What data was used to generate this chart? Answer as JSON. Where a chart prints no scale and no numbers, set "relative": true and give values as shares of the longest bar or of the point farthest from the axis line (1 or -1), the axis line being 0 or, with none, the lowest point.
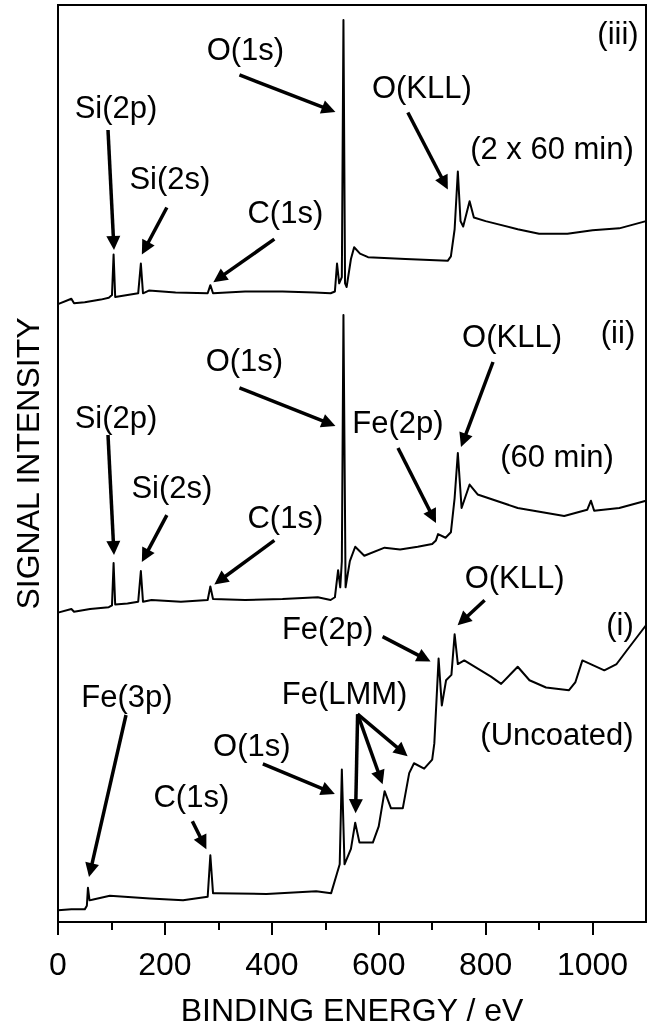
{
  "chart_data": {
    "type": "line",
    "relative": true,
    "xlabel": "BINDING ENERGY / eV",
    "ylabel": "SIGNAL INTENSITY",
    "tick_labels": "x",
    "xlim": [
      0,
      1100
    ],
    "xticks": [
      0,
      {
        "value": 100,
        "label": null
      },
      200,
      {
        "value": 300,
        "label": null
      },
      400,
      {
        "value": 500,
        "label": null
      },
      600,
      {
        "value": 700,
        "label": null
      },
      800,
      {
        "value": 900,
        "label": null
      },
      1000
    ],
    "series": [
      {
        "color": "#000000",
        "x": [
          0,
          25,
          30,
          50,
          80,
          95,
          101,
          104,
          107,
          130,
          150,
          155,
          159,
          170,
          220,
          280,
          285,
          290,
          350,
          420,
          480,
          510,
          518,
          522,
          526,
          531,
          534,
          537,
          540,
          548,
          554,
          565,
          580,
          650,
          729,
          735,
          742,
          748,
          753,
          758,
          770,
          778,
          800,
          860,
          900,
          953,
          1000,
          1050,
          1100
        ],
        "values": [
          0.685,
          0.691,
          0.686,
          0.687,
          0.69,
          0.692,
          0.695,
          0.74,
          0.693,
          0.695,
          0.697,
          0.73,
          0.697,
          0.7,
          0.698,
          0.697,
          0.706,
          0.697,
          0.699,
          0.699,
          0.698,
          0.697,
          0.699,
          0.73,
          0.708,
          0.715,
          1.0,
          0.708,
          0.704,
          0.735,
          0.748,
          0.741,
          0.737,
          0.735,
          0.733,
          0.738,
          0.768,
          0.832,
          0.777,
          0.771,
          0.799,
          0.781,
          0.777,
          0.768,
          0.763,
          0.763,
          0.767,
          0.769,
          0.777
        ]
      },
      {
        "color": "#000000",
        "x": [
          0,
          25,
          30,
          60,
          95,
          101,
          104,
          107,
          130,
          150,
          155,
          159,
          175,
          230,
          280,
          285,
          290,
          350,
          420,
          486,
          510,
          518,
          524,
          528,
          531,
          534,
          538,
          546,
          556,
          573,
          611,
          640,
          673,
          700,
          707,
          711,
          725,
          735,
          742,
          748,
          755,
          770,
          785,
          860,
          947,
          990,
          997,
          1003,
          1050,
          1100
        ],
        "values": [
          0.343,
          0.347,
          0.344,
          0.347,
          0.349,
          0.351,
          0.398,
          0.352,
          0.353,
          0.355,
          0.389,
          0.355,
          0.357,
          0.355,
          0.357,
          0.372,
          0.358,
          0.357,
          0.358,
          0.36,
          0.357,
          0.36,
          0.39,
          0.371,
          0.4,
          0.673,
          0.371,
          0.4,
          0.416,
          0.406,
          0.415,
          0.413,
          0.416,
          0.419,
          0.423,
          0.43,
          0.426,
          0.432,
          0.47,
          0.52,
          0.459,
          0.485,
          0.474,
          0.459,
          0.45,
          0.457,
          0.467,
          0.456,
          0.459,
          0.467
        ]
      },
      {
        "color": "#000000",
        "x": [
          0,
          25,
          50,
          54,
          56,
          59,
          66,
          97,
          172,
          234,
          280,
          285,
          290,
          296,
          390,
          483,
          511,
          522,
          527,
          531,
          536,
          548,
          556,
          564,
          589,
          600,
          611,
          623,
          645,
          657,
          666,
          685,
          700,
          704,
          712,
          718,
          726,
          736,
          742,
          748,
          760,
          810,
          829,
          860,
          882,
          913,
          956,
          968,
          981,
          1022,
          1045,
          1064,
          1100
        ],
        "values": [
          0.013,
          0.014,
          0.014,
          0.018,
          0.038,
          0.024,
          0.025,
          0.029,
          0.026,
          0.024,
          0.028,
          0.074,
          0.032,
          0.032,
          0.031,
          0.034,
          0.032,
          0.054,
          0.064,
          0.169,
          0.064,
          0.081,
          0.11,
          0.088,
          0.088,
          0.106,
          0.145,
          0.126,
          0.126,
          0.165,
          0.176,
          0.17,
          0.18,
          0.198,
          0.292,
          0.24,
          0.268,
          0.274,
          0.319,
          0.286,
          0.29,
          0.272,
          0.264,
          0.283,
          0.268,
          0.26,
          0.257,
          0.266,
          0.29,
          0.279,
          0.286,
          0.301,
          0.329
        ]
      }
    ],
    "annotations": [
      {
        "text": "O(1s)",
        "x": 534,
        "y": 0.898
      },
      "Si(2p)",
      {
        "text": "Si(2s)",
        "x": 155,
        "y": 0.73
      },
      {
        "text": "C(1s)",
        "x": 285,
        "y": 0.706
      },
      {
        "text": "O(KLL)",
        "x": 748,
        "y": 0.832
      },
      "(iii)",
      "(2 x 60 min)",
      {
        "text": "O(1s)",
        "x": 534,
        "y": 0.55
      },
      "Si(2p)",
      {
        "text": "Si(2s)",
        "x": 155,
        "y": 0.389
      },
      {
        "text": "C(1s)",
        "x": 285,
        "y": 0.372
      },
      "Fe(2p)",
      "O(KLL)",
      "(ii)",
      "(60 min)",
      {
        "text": "O(KLL)",
        "x": 742,
        "y": 0.319
      },
      {
        "text": "Fe(2p)",
        "x": 712,
        "y": 0.292
      },
      "(i)",
      {
        "text": "Fe(LMM)",
        "x": 611,
        "y": 0.145
      },
      "(Uncoated)",
      {
        "text": "O(1s)",
        "x": 531,
        "y": 0.142
      },
      "Fe(3p)",
      {
        "text": "C(1s)",
        "x": 285,
        "y": 0.074
      }
    ]
  }
}
